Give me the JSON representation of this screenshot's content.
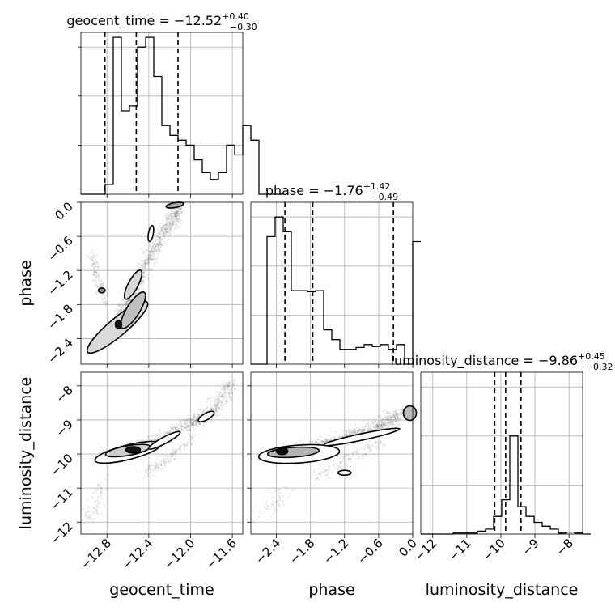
{
  "chart_data": {
    "type": "corner",
    "parameters": [
      "geocent_time",
      "phase",
      "luminosity_distance"
    ],
    "titles": [
      {
        "name": "geocent_time",
        "median": "−12.52",
        "plus": "+0.40",
        "minus": "−0.30"
      },
      {
        "name": "phase",
        "median": "−1.76",
        "plus": "+1.42",
        "minus": "−0.49"
      },
      {
        "name": "luminosity_distance",
        "median": "−9.86",
        "plus": "+0.45",
        "minus": "−0.32"
      }
    ],
    "ranges": {
      "geocent_time": [
        -13.05,
        -11.5
      ],
      "phase": [
        -2.85,
        0.0
      ],
      "luminosity_distance": [
        -12.35,
        -7.6
      ]
    },
    "ticks": {
      "geocent_time": {
        "values": [
          -12.8,
          -12.4,
          -12.0,
          -11.6
        ],
        "labels": [
          "−12.8",
          "−12.4",
          "−12.0",
          "−11.6"
        ]
      },
      "phase": {
        "values": [
          -2.4,
          -1.8,
          -1.2,
          -0.6,
          0.0
        ],
        "labels": [
          "−2.4",
          "−1.8",
          "−1.2",
          "−0.6",
          "0.0"
        ]
      },
      "luminosity_distance": {
        "values": [
          -12,
          -11,
          -10,
          -9,
          -8
        ],
        "labels": [
          "−12",
          "−11",
          "−10",
          "−9",
          "−8"
        ]
      }
    },
    "histograms": {
      "geocent_time": {
        "edges_start": -13.05,
        "bin_width": 0.0775,
        "counts": [
          0,
          0,
          0,
          0.1,
          1.6,
          0.85,
          0.9,
          1.5,
          1.6,
          1.2,
          0.7,
          0.6,
          0.55,
          0.5,
          0.35,
          0.22,
          0.15,
          0.22,
          0.5,
          0.4,
          0.7,
          0.55,
          0,
          0,
          0
        ]
      },
      "phase": {
        "edges_start": -2.85,
        "bin_width": 0.1425,
        "counts": [
          0,
          0,
          1.3,
          1.5,
          1.35,
          0.75,
          0.75,
          0.74,
          0.75,
          0.35,
          0.25,
          0.15,
          0.15,
          0.17,
          0.2,
          0.18,
          0.2,
          0.15,
          0.2,
          0,
          1.25
        ]
      },
      "luminosity_distance": {
        "edges_start": -12.35,
        "bin_width": 0.2375,
        "counts": [
          0,
          0,
          0,
          0,
          0.01,
          0.01,
          0.01,
          0.03,
          0.05,
          0.18,
          0.35,
          1.0,
          0.28,
          0.18,
          0.12,
          0.08,
          0.05,
          0.01,
          0.02,
          0.01,
          0
        ]
      }
    },
    "quantiles": {
      "geocent_time": [
        -12.82,
        -12.52,
        -12.12
      ],
      "phase": [
        -2.25,
        -1.76,
        -0.34
      ],
      "luminosity_distance": [
        -10.18,
        -9.86,
        -9.41
      ]
    },
    "grid": true
  }
}
